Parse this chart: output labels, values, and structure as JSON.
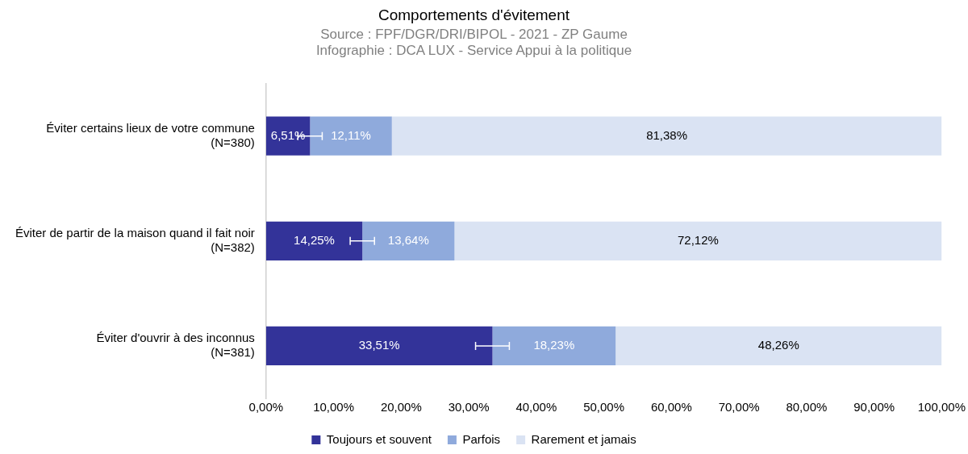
{
  "chart_data": {
    "type": "bar",
    "orientation": "horizontal",
    "stacked": true,
    "title": "Comportements d'évitement",
    "subtitle": "Source : FPF/DGR/DRI/BIPOL - 2021 - ZP Gaume",
    "annotations": [
      "Infographie : DCA LUX - Service Appui à la politique"
    ],
    "categories": [
      "Éviter certains lieux de votre commune\n(N=380)",
      "Éviter de partir de la maison quand il fait noir\n(N=382)",
      "Éviter d'ouvrir à des inconnus\n(N=381)"
    ],
    "series": [
      {
        "name": "Toujours et souvent",
        "color": "#333399",
        "values": [
          6.51,
          14.25,
          33.51
        ],
        "errors": [
          1.8,
          1.8,
          2.5
        ],
        "value_labels": [
          "6,51%",
          "14,25%",
          "33,51%"
        ]
      },
      {
        "name": "Parfois",
        "color": "#8faadc",
        "values": [
          12.11,
          13.64,
          18.23
        ],
        "value_labels": [
          "12,11%",
          "13,64%",
          "18,23%"
        ]
      },
      {
        "name": "Rarement et jamais",
        "color": "#dae3f3",
        "values": [
          81.38,
          72.12,
          48.26
        ],
        "value_labels": [
          "81,38%",
          "72,12%",
          "48,26%"
        ]
      }
    ],
    "xlim": [
      0,
      100
    ],
    "xticks": [
      {
        "value": 0,
        "label": "0,00%"
      },
      {
        "value": 10,
        "label": "10,00%"
      },
      {
        "value": 20,
        "label": "20,00%"
      },
      {
        "value": 30,
        "label": "30,00%"
      },
      {
        "value": 40,
        "label": "40,00%"
      },
      {
        "value": 50,
        "label": "50,00%"
      },
      {
        "value": 60,
        "label": "60,00%"
      },
      {
        "value": 70,
        "label": "70,00%"
      },
      {
        "value": 80,
        "label": "80,00%"
      },
      {
        "value": 90,
        "label": "90,00%"
      },
      {
        "value": 100,
        "label": "100,00%"
      }
    ],
    "grid": false,
    "legend": "bottom"
  }
}
